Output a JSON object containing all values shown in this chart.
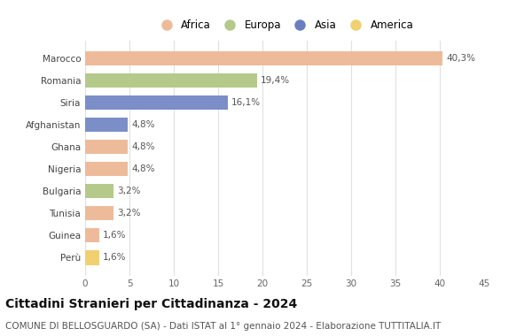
{
  "countries": [
    "Marocco",
    "Romania",
    "Siria",
    "Afghanistan",
    "Ghana",
    "Nigeria",
    "Bulgaria",
    "Tunisia",
    "Guinea",
    "Perù"
  ],
  "values": [
    40.3,
    19.4,
    16.1,
    4.8,
    4.8,
    4.8,
    3.2,
    3.2,
    1.6,
    1.6
  ],
  "labels": [
    "40,3%",
    "19,4%",
    "16,1%",
    "4,8%",
    "4,8%",
    "4,8%",
    "3,2%",
    "3,2%",
    "1,6%",
    "1,6%"
  ],
  "bar_colors": [
    "#EDBB99",
    "#B5C98A",
    "#7B8EC8",
    "#7B8EC8",
    "#EDBB99",
    "#EDBB99",
    "#B5C98A",
    "#EDBB99",
    "#EDBB99",
    "#F0D070"
  ],
  "xlim": [
    0,
    45
  ],
  "xticks": [
    0,
    5,
    10,
    15,
    20,
    25,
    30,
    35,
    40,
    45
  ],
  "title": "Cittadini Stranieri per Cittadinanza - 2024",
  "subtitle": "COMUNE DI BELLOSGUARDO (SA) - Dati ISTAT al 1° gennaio 2024 - Elaborazione TUTTITALIA.IT",
  "legend_labels": [
    "Africa",
    "Europa",
    "Asia",
    "America"
  ],
  "legend_colors": [
    "#EDBB99",
    "#B5C98A",
    "#6B7EC0",
    "#F0D070"
  ],
  "bg_color": "#ffffff",
  "grid_color": "#e0e0e0",
  "bar_height": 0.65,
  "title_fontsize": 10,
  "subtitle_fontsize": 7.5,
  "tick_fontsize": 7.5,
  "label_fontsize": 7.5,
  "legend_fontsize": 8.5
}
